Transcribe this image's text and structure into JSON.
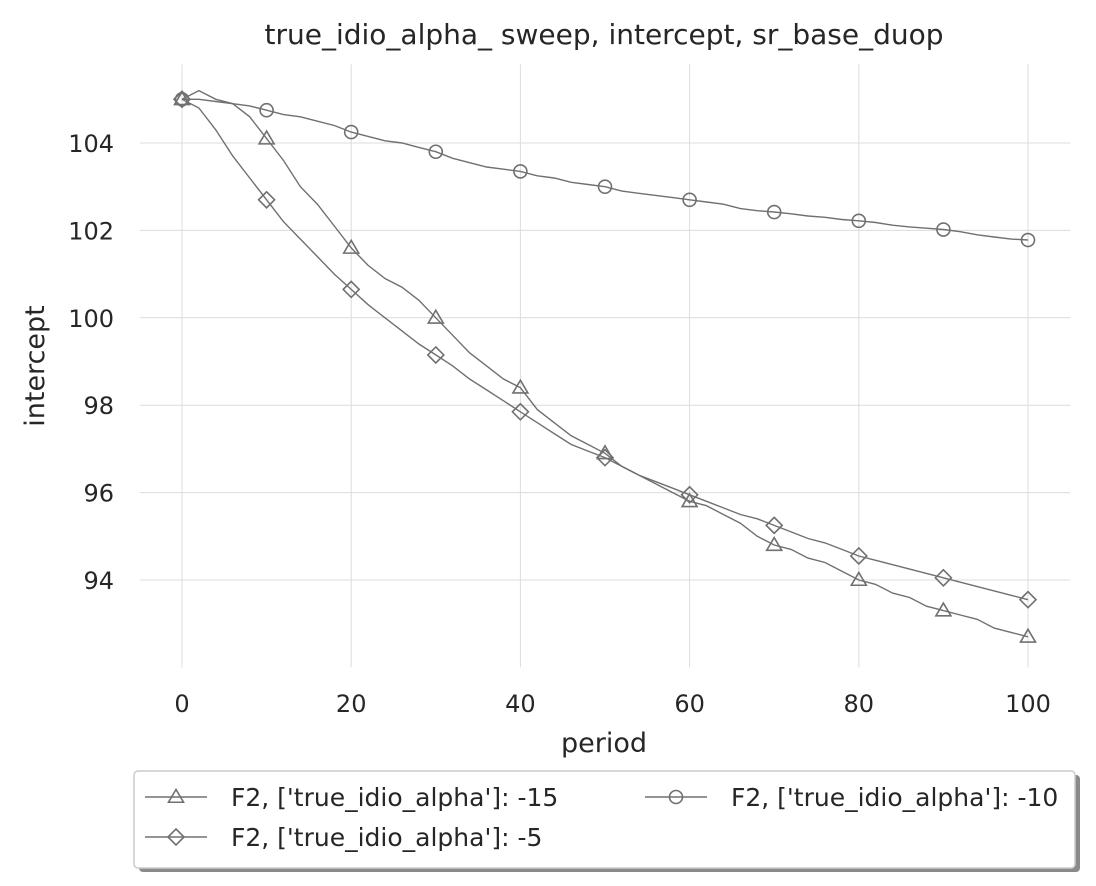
{
  "chart_data": {
    "type": "line",
    "title": "true_idio_alpha_ sweep, intercept, sr_base_duop",
    "xlabel": "period",
    "ylabel": "intercept",
    "xlim": [
      -5,
      105
    ],
    "ylim": [
      92.0,
      105.8
    ],
    "xticks": [
      0,
      20,
      40,
      60,
      80,
      100
    ],
    "yticks": [
      94,
      96,
      98,
      100,
      102,
      104
    ],
    "grid": true,
    "legend_position": "bottom-outside",
    "colors": {
      "series": "#707070",
      "grid": "#dcdcdc",
      "text": "#262626"
    },
    "series": [
      {
        "name": "F2, ['true_idio_alpha']: -15",
        "marker": "triangle",
        "x": [
          0,
          2,
          4,
          6,
          8,
          10,
          12,
          14,
          16,
          18,
          20,
          22,
          24,
          26,
          28,
          30,
          32,
          34,
          36,
          38,
          40,
          42,
          44,
          46,
          48,
          50,
          52,
          54,
          56,
          58,
          60,
          62,
          64,
          66,
          68,
          70,
          72,
          74,
          76,
          78,
          80,
          82,
          84,
          86,
          88,
          90,
          92,
          94,
          96,
          98,
          100
        ],
        "y": [
          105.0,
          105.2,
          105.0,
          104.9,
          104.6,
          104.1,
          103.6,
          103.0,
          102.6,
          102.1,
          101.6,
          101.2,
          100.9,
          100.7,
          100.4,
          100.0,
          99.6,
          99.2,
          98.9,
          98.6,
          98.4,
          97.9,
          97.6,
          97.3,
          97.1,
          96.9,
          96.6,
          96.4,
          96.2,
          96.0,
          95.8,
          95.7,
          95.5,
          95.3,
          95.0,
          94.8,
          94.7,
          94.5,
          94.4,
          94.2,
          94.0,
          93.9,
          93.7,
          93.6,
          93.4,
          93.3,
          93.2,
          93.1,
          92.9,
          92.8,
          92.7
        ]
      },
      {
        "name": "F2, ['true_idio_alpha']: -10",
        "marker": "circle",
        "x": [
          0,
          2,
          4,
          6,
          8,
          10,
          12,
          14,
          16,
          18,
          20,
          22,
          24,
          26,
          28,
          30,
          32,
          34,
          36,
          38,
          40,
          42,
          44,
          46,
          48,
          50,
          52,
          54,
          56,
          58,
          60,
          62,
          64,
          66,
          68,
          70,
          72,
          74,
          76,
          78,
          80,
          82,
          84,
          86,
          88,
          90,
          92,
          94,
          96,
          98,
          100
        ],
        "y": [
          105.0,
          105.0,
          104.95,
          104.9,
          104.85,
          104.75,
          104.65,
          104.6,
          104.5,
          104.4,
          104.25,
          104.15,
          104.05,
          104.0,
          103.9,
          103.8,
          103.65,
          103.55,
          103.45,
          103.4,
          103.35,
          103.25,
          103.2,
          103.1,
          103.05,
          103.0,
          102.9,
          102.85,
          102.8,
          102.75,
          102.7,
          102.65,
          102.6,
          102.5,
          102.45,
          102.42,
          102.38,
          102.33,
          102.3,
          102.25,
          102.22,
          102.18,
          102.12,
          102.08,
          102.05,
          102.02,
          101.97,
          101.9,
          101.85,
          101.8,
          101.78
        ]
      },
      {
        "name": "F2, ['true_idio_alpha']: -5",
        "marker": "diamond",
        "x": [
          0,
          2,
          4,
          6,
          8,
          10,
          12,
          14,
          16,
          18,
          20,
          22,
          24,
          26,
          28,
          30,
          32,
          34,
          36,
          38,
          40,
          42,
          44,
          46,
          48,
          50,
          52,
          54,
          56,
          58,
          60,
          62,
          64,
          66,
          68,
          70,
          72,
          74,
          76,
          78,
          80,
          82,
          84,
          86,
          88,
          90,
          92,
          94,
          96,
          98,
          100
        ],
        "y": [
          105.0,
          104.8,
          104.3,
          103.7,
          103.2,
          102.7,
          102.2,
          101.8,
          101.4,
          101.0,
          100.65,
          100.3,
          100.0,
          99.7,
          99.4,
          99.15,
          98.9,
          98.6,
          98.35,
          98.1,
          97.85,
          97.6,
          97.35,
          97.1,
          96.95,
          96.8,
          96.6,
          96.4,
          96.25,
          96.1,
          95.95,
          95.8,
          95.65,
          95.5,
          95.4,
          95.25,
          95.1,
          94.95,
          94.85,
          94.7,
          94.55,
          94.45,
          94.35,
          94.25,
          94.15,
          94.05,
          93.95,
          93.85,
          93.75,
          93.65,
          93.55
        ]
      }
    ],
    "legend_order": [
      0,
      2,
      1
    ]
  }
}
